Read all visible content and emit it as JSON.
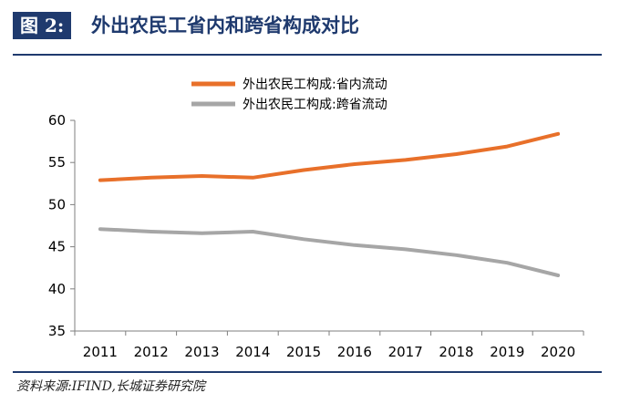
{
  "header": {
    "figure_label": "图 2:",
    "title": "外出农民工省内和跨省构成对比"
  },
  "source": "资料来源:IFIND,长城证券研究院",
  "colors": {
    "header_blue": "#1f3a6e",
    "series_intra": "#e8702a",
    "series_inter": "#a6a6a6"
  },
  "chart_data": {
    "type": "line",
    "title": "",
    "xlabel": "",
    "ylabel": "",
    "x": [
      2011,
      2012,
      2013,
      2014,
      2015,
      2016,
      2017,
      2018,
      2019,
      2020
    ],
    "x_tick_labels": [
      "2011",
      "2012",
      "2013",
      "2014",
      "2015",
      "2016",
      "2017",
      "2018",
      "2019",
      "2020"
    ],
    "ylim": [
      35,
      60
    ],
    "y_ticks": [
      35,
      40,
      45,
      50,
      55,
      60
    ],
    "y_tick_labels": [
      "35",
      "40",
      "45",
      "50",
      "55",
      "60"
    ],
    "grid": false,
    "legend_position": "top-center",
    "series": [
      {
        "name": "外出农民工构成:省内流动",
        "color": "#e8702a",
        "values": [
          52.9,
          53.2,
          53.4,
          53.2,
          54.1,
          54.8,
          55.3,
          56.0,
          56.9,
          58.4
        ]
      },
      {
        "name": "外出农民工构成:跨省流动",
        "color": "#a6a6a6",
        "values": [
          47.1,
          46.8,
          46.6,
          46.8,
          45.9,
          45.2,
          44.7,
          44.0,
          43.1,
          41.6
        ]
      }
    ]
  }
}
